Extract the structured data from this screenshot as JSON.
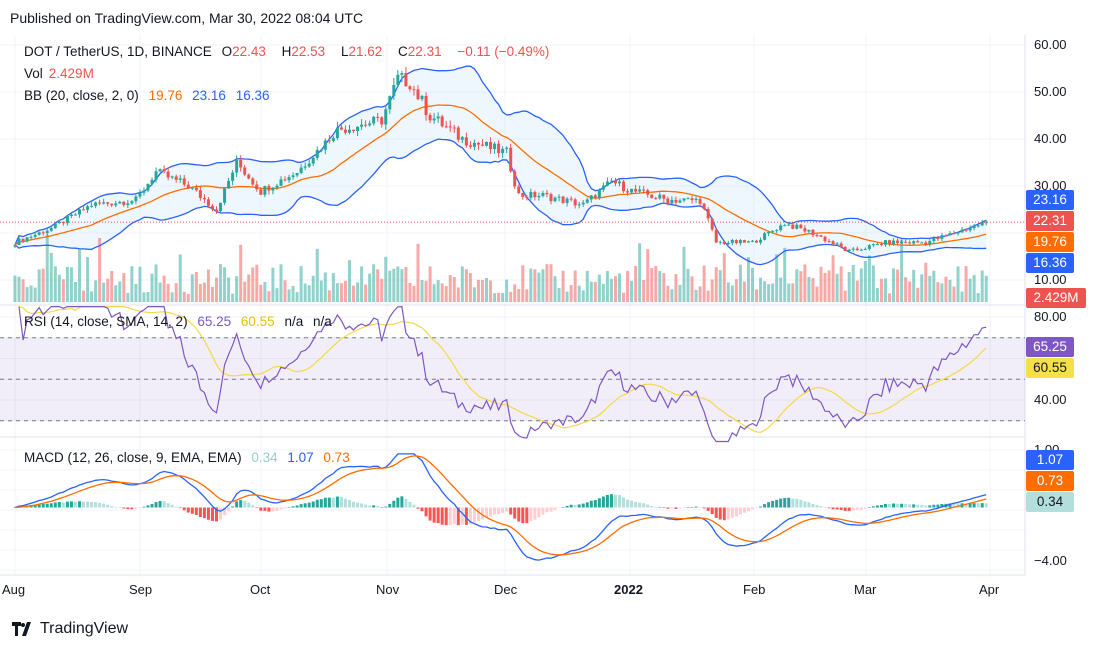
{
  "published": "Published on TradingView.com, Mar 30, 2022 08:04 UTC",
  "legend": {
    "symbol": "DOT / TetherUS, 1D, BINANCE",
    "o_label": "O",
    "o": "22.43",
    "h_label": "H",
    "h": "22.53",
    "l_label": "L",
    "l": "21.62",
    "c_label": "C",
    "c": "22.31",
    "change": "−0.11 (−0.49%)",
    "vol_label": "Vol",
    "vol": "2.429M",
    "bb_label": "BB (20, close, 2, 0)",
    "bb_basis": "19.76",
    "bb_upper": "23.16",
    "bb_lower": "16.36",
    "rsi_label": "RSI (14, close, SMA, 14, 2)",
    "rsi": "65.25",
    "rsi_ma": "60.55",
    "rsi_na1": "n/a",
    "rsi_na2": "n/a",
    "macd_label": "MACD (12, 26, close, 9, EMA, EMA)",
    "macd_hist": "0.34",
    "macd": "1.07",
    "macd_signal": "0.73"
  },
  "price_axis": [
    "60.00",
    "50.00",
    "40.00",
    "30.00",
    "10.00"
  ],
  "price_tags": {
    "upper": "23.16",
    "close": "22.31",
    "basis": "19.76",
    "lower": "16.36",
    "volume": "2.429M"
  },
  "rsi_axis": [
    "80.00",
    "40.00"
  ],
  "rsi_tags": {
    "rsi": "65.25",
    "ma": "60.55"
  },
  "macd_axis": [
    "1.00",
    "−4.00"
  ],
  "macd_tags": {
    "macd": "1.07",
    "signal": "0.73",
    "hist": "0.34"
  },
  "time_axis": [
    "Aug",
    "Sep",
    "Oct",
    "Nov",
    "Dec",
    "2022",
    "Feb",
    "Mar",
    "Apr"
  ],
  "brand": "TradingView",
  "colors": {
    "up": "#26a69a",
    "down": "#ef5350",
    "bb_band": "#2962ff",
    "bb_basis": "#ff6d00",
    "rsi": "#7e57c2",
    "rsi_ma": "#f5d84a",
    "macd": "#2962ff",
    "signal": "#ff6d00"
  },
  "chart_data": {
    "type": "candlestick",
    "symbol": "DOTUSDT",
    "interval": "1D",
    "x_range": [
      "2021-08-01",
      "2022-03-30"
    ],
    "y_range": [
      10,
      60
    ],
    "approx_close_keypoints": [
      [
        "2021-08-01",
        18
      ],
      [
        "2021-08-10",
        21
      ],
      [
        "2021-08-20",
        26
      ],
      [
        "2021-08-31",
        27
      ],
      [
        "2021-09-05",
        33
      ],
      [
        "2021-09-13",
        30
      ],
      [
        "2021-09-20",
        25
      ],
      [
        "2021-09-25",
        35
      ],
      [
        "2021-10-01",
        29
      ],
      [
        "2021-10-10",
        33
      ],
      [
        "2021-10-20",
        42
      ],
      [
        "2021-10-31",
        44
      ],
      [
        "2021-11-04",
        53
      ],
      [
        "2021-11-07",
        52
      ],
      [
        "2021-11-12",
        45
      ],
      [
        "2021-11-20",
        40
      ],
      [
        "2021-12-01",
        37
      ],
      [
        "2021-12-04",
        28
      ],
      [
        "2021-12-10",
        28
      ],
      [
        "2021-12-20",
        26
      ],
      [
        "2021-12-27",
        31
      ],
      [
        "2022-01-01",
        29
      ],
      [
        "2022-01-10",
        27
      ],
      [
        "2022-01-18",
        27
      ],
      [
        "2022-01-22",
        18
      ],
      [
        "2022-01-31",
        18
      ],
      [
        "2022-02-08",
        22
      ],
      [
        "2022-02-15",
        20
      ],
      [
        "2022-02-24",
        16
      ],
      [
        "2022-03-05",
        18
      ],
      [
        "2022-03-15",
        18
      ],
      [
        "2022-03-22",
        20
      ],
      [
        "2022-03-30",
        22.31
      ]
    ]
  }
}
